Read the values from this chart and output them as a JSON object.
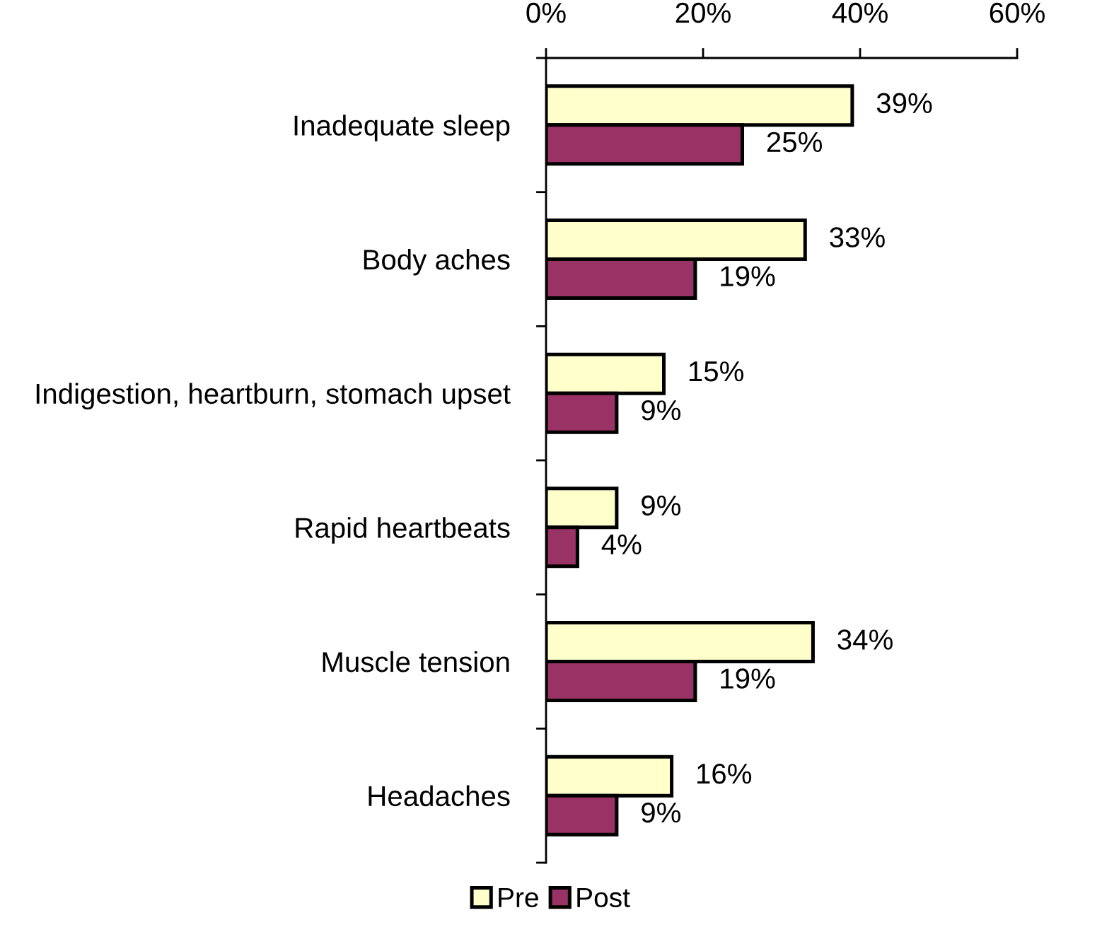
{
  "chart_data": {
    "type": "bar",
    "orientation": "horizontal",
    "categories": [
      "Inadequate sleep",
      "Body aches",
      "Indigestion, heartburn, stomach upset",
      "Rapid heartbeats",
      "Muscle tension",
      "Headaches"
    ],
    "series": [
      {
        "name": "Pre",
        "color": "#ffffcc",
        "values": [
          39,
          33,
          15,
          9,
          34,
          16
        ],
        "value_labels": [
          "39%",
          "33%",
          "15%",
          "9%",
          "34%",
          "16%"
        ]
      },
      {
        "name": "Post",
        "color": "#993366",
        "values": [
          25,
          19,
          9,
          4,
          19,
          9
        ],
        "value_labels": [
          "25%",
          "19%",
          "9%",
          "4%",
          "19%",
          "9%"
        ]
      }
    ],
    "xlim": [
      0,
      60
    ],
    "xticks": [
      {
        "value": 0,
        "label": "0%"
      },
      {
        "value": 20,
        "label": "20%"
      },
      {
        "value": 40,
        "label": "40%"
      },
      {
        "value": 60,
        "label": "60%"
      }
    ],
    "legend": "bottom"
  }
}
